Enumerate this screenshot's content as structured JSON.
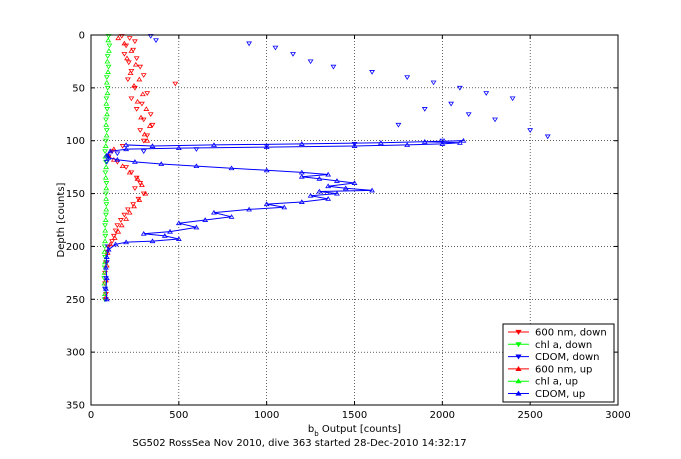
{
  "caption": "SG502 RossSea Nov 2010, dive 363 started 28-Dec-2010 14:32:17",
  "chart_data": {
    "type": "scatter",
    "title": "",
    "xlabel_main": "b",
    "xlabel_sub": "b",
    "xlabel_rest": " Output [counts]",
    "ylabel": "Depth [counts]",
    "xlim": [
      0,
      3000
    ],
    "ylim": [
      350,
      0
    ],
    "y_inverted": true,
    "grid": true,
    "legend_position": "bottom-right",
    "x_ticks": [
      0,
      500,
      1000,
      1500,
      2000,
      2500,
      3000
    ],
    "y_ticks": [
      0,
      50,
      100,
      150,
      200,
      250,
      300,
      350
    ],
    "x_tick_labels": [
      "0",
      "500",
      "1000",
      "1500",
      "2000",
      "2500",
      "3000"
    ],
    "y_tick_labels": [
      "0",
      "50",
      "100",
      "150",
      "200",
      "250",
      "300",
      "350"
    ],
    "series": [
      {
        "name": "600 nm, down",
        "color": "#ff0000",
        "marker": "triangle-down",
        "line": false,
        "points": [
          [
            175,
            1
          ],
          [
            220,
            3
          ],
          [
            250,
            6
          ],
          [
            200,
            10
          ],
          [
            240,
            14
          ],
          [
            190,
            18
          ],
          [
            260,
            22
          ],
          [
            215,
            26
          ],
          [
            280,
            30
          ],
          [
            230,
            34
          ],
          [
            300,
            38
          ],
          [
            210,
            42
          ],
          [
            480,
            46
          ],
          [
            250,
            50
          ],
          [
            320,
            55
          ],
          [
            230,
            60
          ],
          [
            290,
            65
          ],
          [
            260,
            70
          ],
          [
            340,
            75
          ],
          [
            300,
            80
          ],
          [
            350,
            85
          ],
          [
            280,
            90
          ],
          [
            320,
            95
          ],
          [
            300,
            100
          ],
          [
            180,
            105
          ],
          [
            120,
            110
          ],
          [
            100,
            115
          ],
          [
            150,
            120
          ],
          [
            200,
            125
          ],
          [
            230,
            130
          ],
          [
            260,
            135
          ],
          [
            280,
            140
          ],
          [
            250,
            145
          ],
          [
            300,
            150
          ],
          [
            270,
            155
          ],
          [
            240,
            160
          ],
          [
            210,
            165
          ],
          [
            190,
            170
          ],
          [
            170,
            175
          ],
          [
            150,
            180
          ],
          [
            140,
            185
          ],
          [
            130,
            190
          ],
          [
            120,
            195
          ],
          [
            100,
            200
          ],
          [
            90,
            205
          ],
          [
            85,
            215
          ],
          [
            80,
            225
          ],
          [
            80,
            235
          ],
          [
            85,
            245
          ]
        ]
      },
      {
        "name": "chl a, down",
        "color": "#00ff00",
        "marker": "triangle-down",
        "line": false,
        "points": [
          [
            100,
            1
          ],
          [
            105,
            10
          ],
          [
            95,
            20
          ],
          [
            100,
            30
          ],
          [
            90,
            40
          ],
          [
            95,
            50
          ],
          [
            88,
            60
          ],
          [
            92,
            70
          ],
          [
            85,
            80
          ],
          [
            90,
            90
          ],
          [
            85,
            100
          ],
          [
            80,
            110
          ],
          [
            85,
            120
          ],
          [
            82,
            130
          ],
          [
            88,
            140
          ],
          [
            85,
            150
          ],
          [
            88,
            160
          ],
          [
            85,
            170
          ],
          [
            80,
            180
          ],
          [
            82,
            190
          ],
          [
            78,
            200
          ],
          [
            80,
            210
          ],
          [
            78,
            220
          ],
          [
            75,
            230
          ],
          [
            80,
            240
          ],
          [
            78,
            250
          ]
        ]
      },
      {
        "name": "CDOM, down",
        "color": "#0000ff",
        "marker": "triangle-down",
        "line": false,
        "points": [
          [
            340,
            1
          ],
          [
            370,
            5
          ],
          [
            900,
            8
          ],
          [
            1050,
            12
          ],
          [
            1150,
            18
          ],
          [
            1250,
            25
          ],
          [
            1380,
            30
          ],
          [
            1600,
            35
          ],
          [
            1800,
            40
          ],
          [
            1950,
            45
          ],
          [
            2100,
            50
          ],
          [
            2250,
            55
          ],
          [
            2400,
            60
          ],
          [
            2050,
            65
          ],
          [
            1900,
            70
          ],
          [
            2150,
            75
          ],
          [
            2300,
            80
          ],
          [
            1750,
            85
          ],
          [
            2500,
            90
          ],
          [
            2600,
            96
          ],
          [
            2000,
            100
          ],
          [
            1500,
            103
          ],
          [
            1000,
            105
          ],
          [
            600,
            108
          ],
          [
            300,
            110
          ],
          [
            150,
            112
          ],
          [
            100,
            115
          ],
          [
            90,
            120
          ],
          [
            95,
            200
          ],
          [
            90,
            215
          ],
          [
            85,
            230
          ],
          [
            80,
            240
          ],
          [
            85,
            250
          ]
        ]
      },
      {
        "name": "600 nm, up",
        "color": "#ff0000",
        "marker": "triangle-up",
        "line": false,
        "points": [
          [
            155,
            3
          ],
          [
            190,
            8
          ],
          [
            230,
            15
          ],
          [
            205,
            22
          ],
          [
            255,
            28
          ],
          [
            225,
            36
          ],
          [
            275,
            42
          ],
          [
            245,
            48
          ],
          [
            295,
            56
          ],
          [
            265,
            63
          ],
          [
            315,
            70
          ],
          [
            285,
            78
          ],
          [
            335,
            86
          ],
          [
            305,
            94
          ],
          [
            320,
            100
          ],
          [
            130,
            108
          ],
          [
            100,
            114
          ],
          [
            130,
            118
          ],
          [
            180,
            124
          ],
          [
            220,
            130
          ],
          [
            265,
            136
          ],
          [
            290,
            142
          ],
          [
            310,
            150
          ],
          [
            275,
            156
          ],
          [
            245,
            162
          ],
          [
            220,
            168
          ],
          [
            200,
            174
          ],
          [
            175,
            180
          ],
          [
            155,
            186
          ],
          [
            135,
            192
          ],
          [
            110,
            198
          ],
          [
            95,
            206
          ],
          [
            90,
            218
          ],
          [
            85,
            232
          ],
          [
            85,
            248
          ]
        ]
      },
      {
        "name": "chl a, up",
        "color": "#00ff00",
        "marker": "triangle-up",
        "line": false,
        "points": [
          [
            98,
            5
          ],
          [
            102,
            15
          ],
          [
            93,
            25
          ],
          [
            97,
            35
          ],
          [
            90,
            45
          ],
          [
            94,
            55
          ],
          [
            87,
            65
          ],
          [
            91,
            75
          ],
          [
            86,
            85
          ],
          [
            89,
            95
          ],
          [
            84,
            105
          ],
          [
            82,
            115
          ],
          [
            86,
            125
          ],
          [
            84,
            135
          ],
          [
            87,
            145
          ],
          [
            86,
            155
          ],
          [
            87,
            165
          ],
          [
            84,
            175
          ],
          [
            81,
            185
          ],
          [
            80,
            195
          ],
          [
            77,
            205
          ],
          [
            79,
            215
          ],
          [
            77,
            225
          ],
          [
            76,
            235
          ],
          [
            79,
            245
          ]
        ]
      },
      {
        "name": "CDOM, up",
        "color": "#0000ff",
        "marker": "triangle-up",
        "line": true,
        "points": [
          [
            90,
            250
          ],
          [
            85,
            240
          ],
          [
            90,
            230
          ],
          [
            85,
            220
          ],
          [
            90,
            210
          ],
          [
            100,
            203
          ],
          [
            140,
            198
          ],
          [
            200,
            196
          ],
          [
            350,
            195
          ],
          [
            500,
            193
          ],
          [
            420,
            190
          ],
          [
            300,
            188
          ],
          [
            450,
            186
          ],
          [
            600,
            182
          ],
          [
            500,
            178
          ],
          [
            650,
            175
          ],
          [
            800,
            172
          ],
          [
            700,
            168
          ],
          [
            900,
            165
          ],
          [
            1100,
            163
          ],
          [
            1000,
            160
          ],
          [
            1200,
            158
          ],
          [
            1350,
            155
          ],
          [
            1250,
            152
          ],
          [
            1400,
            150
          ],
          [
            1300,
            148
          ],
          [
            1600,
            147
          ],
          [
            1450,
            145
          ],
          [
            1350,
            143
          ],
          [
            1500,
            140
          ],
          [
            1400,
            138
          ],
          [
            1300,
            136
          ],
          [
            1200,
            134
          ],
          [
            1350,
            132
          ],
          [
            1200,
            130
          ],
          [
            1000,
            128
          ],
          [
            800,
            126
          ],
          [
            600,
            124
          ],
          [
            400,
            122
          ],
          [
            250,
            120
          ],
          [
            150,
            118
          ],
          [
            100,
            116
          ],
          [
            90,
            114
          ],
          [
            110,
            110
          ],
          [
            200,
            108
          ],
          [
            500,
            107
          ],
          [
            1000,
            106
          ],
          [
            1500,
            105
          ],
          [
            1800,
            104
          ],
          [
            2000,
            103
          ],
          [
            2100,
            102
          ],
          [
            1900,
            101
          ],
          [
            2120,
            100
          ],
          [
            1650,
            102
          ],
          [
            1200,
            103
          ],
          [
            700,
            104
          ],
          [
            350,
            105
          ],
          [
            200,
            104
          ]
        ]
      }
    ]
  }
}
